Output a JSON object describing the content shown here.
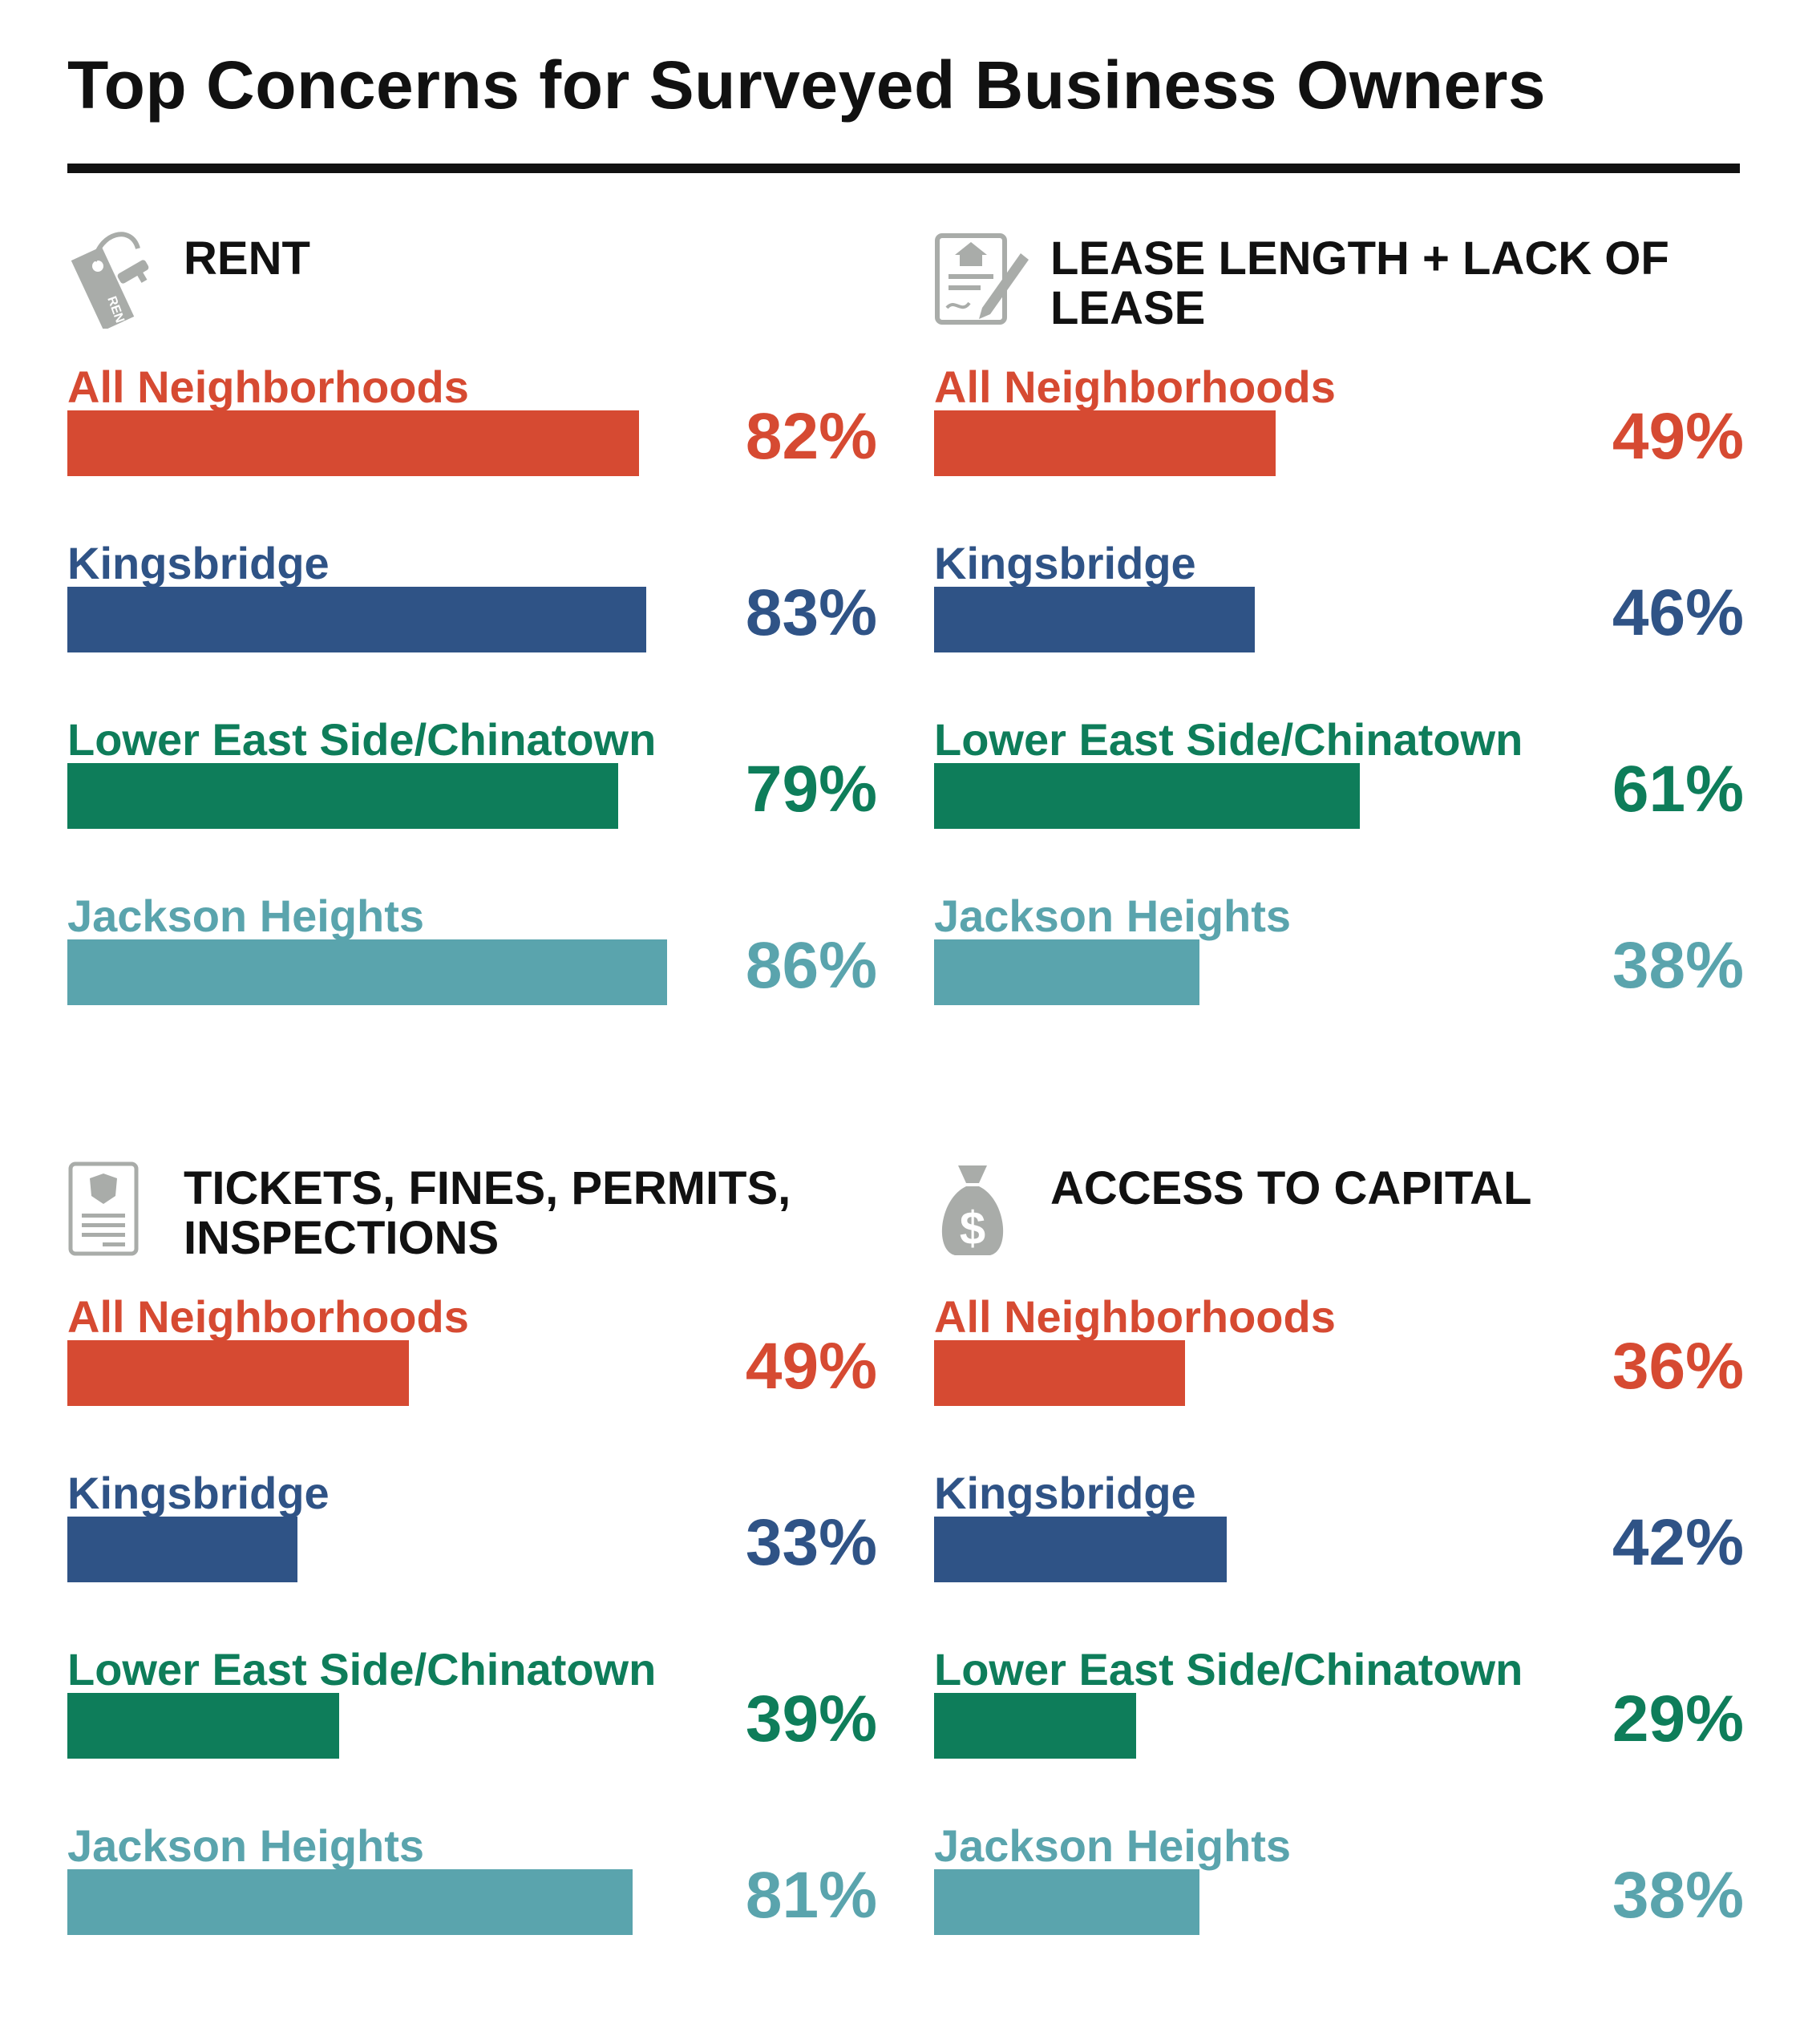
{
  "title": "Top Concerns for Surveyed Business Owners",
  "colors": {
    "All Neighborhoods": "#d64a32",
    "Kingsbridge": "#2f5386",
    "Lower East Side/Chinatown": "#0e7d5a",
    "Jackson Heights": "#5aa4ad",
    "icon": "#a9aca9"
  },
  "chart_data": [
    {
      "type": "bar",
      "title": "RENT",
      "icon": "rent-key-tag-icon",
      "categories": [
        "All Neighborhoods",
        "Kingsbridge",
        "Lower East Side/Chinatown",
        "Jackson Heights"
      ],
      "values": [
        82,
        83,
        79,
        86
      ],
      "value_labels": [
        "82%",
        "83%",
        "79%",
        "86%"
      ],
      "unit": "%"
    },
    {
      "type": "bar",
      "title": "LEASE LENGTH + LACK OF LEASE",
      "icon": "lease-document-icon",
      "categories": [
        "All Neighborhoods",
        "Kingsbridge",
        "Lower East Side/Chinatown",
        "Jackson Heights"
      ],
      "values": [
        49,
        46,
        61,
        38
      ],
      "value_labels": [
        "49%",
        "46%",
        "61%",
        "38%"
      ],
      "unit": "%"
    },
    {
      "type": "bar",
      "title": "TICKETS, FINES, PERMITS, INSPECTIONS",
      "icon": "ticket-badge-icon",
      "categories": [
        "All Neighborhoods",
        "Kingsbridge",
        "Lower East Side/Chinatown",
        "Jackson Heights"
      ],
      "values": [
        49,
        33,
        39,
        81
      ],
      "value_labels": [
        "49%",
        "33%",
        "39%",
        "81%"
      ],
      "unit": "%"
    },
    {
      "type": "bar",
      "title": "ACCESS TO CAPITAL",
      "icon": "money-bag-icon",
      "categories": [
        "All Neighborhoods",
        "Kingsbridge",
        "Lower East Side/Chinatown",
        "Jackson Heights"
      ],
      "values": [
        36,
        42,
        29,
        38
      ],
      "value_labels": [
        "36%",
        "42%",
        "29%",
        "38%"
      ],
      "unit": "%"
    }
  ]
}
